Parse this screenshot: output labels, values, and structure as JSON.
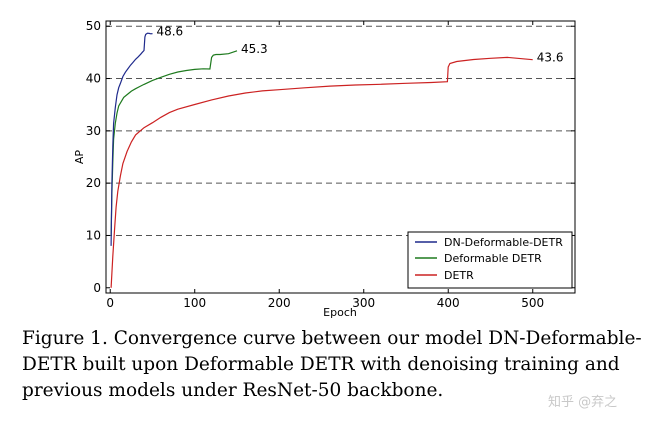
{
  "chart_data": {
    "type": "line",
    "title": "",
    "xlabel": "Epoch",
    "ylabel": "AP",
    "xlim": [
      -5,
      550
    ],
    "ylim": [
      -1,
      51
    ],
    "x_ticks": [
      0,
      100,
      200,
      300,
      400,
      500
    ],
    "y_ticks": [
      0,
      10,
      20,
      30,
      40,
      50
    ],
    "grid": "horizontal-dashed",
    "legend_position": "bottom-right",
    "series": [
      {
        "name": "DN-Deformable-DETR",
        "color": "#1f2a8c",
        "x": [
          1,
          2,
          3,
          4,
          6,
          8,
          10,
          12,
          15,
          18,
          21,
          24,
          27,
          30,
          33,
          36,
          38,
          40,
          41,
          42,
          44,
          46,
          48,
          50
        ],
        "y": [
          8,
          20,
          27,
          31,
          34,
          36.5,
          38,
          39,
          40.5,
          41.5,
          42.3,
          43,
          43.5,
          44,
          44.3,
          44.6,
          44.8,
          45,
          47.5,
          48,
          48.3,
          48.4,
          48.5,
          48.6
        ],
        "end_label": "48.6"
      },
      {
        "name": "Deformable DETR",
        "color": "#1e7a1e",
        "x": [
          1,
          2,
          3,
          4,
          6,
          8,
          10,
          13,
          16,
          20,
          25,
          30,
          35,
          40,
          50,
          60,
          70,
          80,
          90,
          100,
          110,
          118,
          120,
          122,
          125,
          130,
          140,
          150
        ],
        "y": [
          10,
          18,
          24,
          28,
          31,
          33,
          34.5,
          35.5,
          36.5,
          37.2,
          38,
          38.5,
          38.9,
          39.2,
          39.8,
          40.2,
          40.6,
          40.9,
          41.1,
          41.3,
          41.5,
          41.6,
          44,
          44.6,
          44.9,
          45,
          45.2,
          45.3
        ],
        "end_label": "45.3"
      },
      {
        "name": "DETR",
        "color": "#cc2222",
        "x": [
          1,
          3,
          5,
          7,
          9,
          12,
          15,
          20,
          25,
          30,
          40,
          50,
          60,
          70,
          80,
          100,
          120,
          140,
          160,
          180,
          200,
          230,
          260,
          290,
          320,
          350,
          380,
          399,
          400,
          402,
          410,
          430,
          450,
          470,
          500
        ],
        "y": [
          0,
          6,
          11,
          15,
          18,
          21,
          23.5,
          26,
          28,
          29.5,
          31,
          32,
          33,
          33.8,
          34.3,
          35,
          35.7,
          36.3,
          36.8,
          37.2,
          37.5,
          38,
          38.5,
          38.9,
          39.2,
          39.5,
          39.7,
          39.8,
          42.5,
          43,
          43.2,
          43.4,
          43.5,
          43.6,
          43.6
        ],
        "end_label": "43.6"
      }
    ]
  },
  "caption": "Figure 1. Convergence curve between our model DN-Deformable-DETR built upon Deformable DETR with denoising training and previous models under ResNet-50 backbone.",
  "watermark": "知乎 @弃之"
}
